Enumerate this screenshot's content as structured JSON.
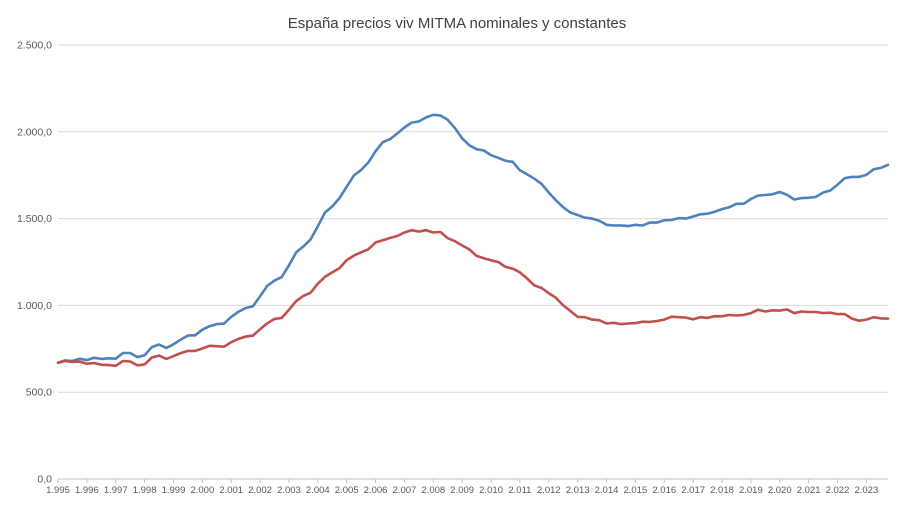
{
  "chart_data": {
    "type": "line",
    "title": "España precios viv MITMA nominales y constantes",
    "xlabel": "",
    "ylabel": "",
    "ylim": [
      0,
      2500
    ],
    "yticks": [
      "0,0",
      "500,0",
      "1.000,0",
      "1.500,0",
      "2.000,0",
      "2.500,0"
    ],
    "ytick_values": [
      0,
      500,
      1000,
      1500,
      2000,
      2500
    ],
    "xticks": [
      "1.995",
      "1.996",
      "1.997",
      "1.998",
      "1.999",
      "2.000",
      "2.001",
      "2.002",
      "2.003",
      "2.004",
      "2.005",
      "2.006",
      "2.007",
      "2.008",
      "2.009",
      "2.010",
      "2.011",
      "2.012",
      "2.013",
      "2.014",
      "2.015",
      "2.016",
      "2.017",
      "2.018",
      "2.019",
      "2.020",
      "2.021",
      "2.022",
      "2.023"
    ],
    "xlim": [
      1995,
      2023.75
    ],
    "grid": "horizontal",
    "legend": "none",
    "series": [
      {
        "color": "#4f81bd",
        "points": [
          [
            1995.0,
            670
          ],
          [
            1995.25,
            683
          ],
          [
            1995.5,
            680
          ],
          [
            1995.75,
            693
          ],
          [
            1996.0,
            685
          ],
          [
            1996.25,
            698
          ],
          [
            1996.5,
            692
          ],
          [
            1996.75,
            695
          ],
          [
            1997.0,
            693
          ],
          [
            1997.25,
            726
          ],
          [
            1997.5,
            726
          ],
          [
            1997.75,
            702
          ],
          [
            1998.0,
            713
          ],
          [
            1998.25,
            760
          ],
          [
            1998.5,
            775
          ],
          [
            1998.75,
            755
          ],
          [
            1999.0,
            776
          ],
          [
            1999.25,
            803
          ],
          [
            1999.5,
            826
          ],
          [
            1999.75,
            828
          ],
          [
            2000.0,
            860
          ],
          [
            2000.25,
            880
          ],
          [
            2000.5,
            892
          ],
          [
            2000.75,
            895
          ],
          [
            2001.0,
            934
          ],
          [
            2001.25,
            963
          ],
          [
            2001.5,
            985
          ],
          [
            2001.75,
            995
          ],
          [
            2002.0,
            1053
          ],
          [
            2002.25,
            1113
          ],
          [
            2002.5,
            1143
          ],
          [
            2002.75,
            1163
          ],
          [
            2003.0,
            1231
          ],
          [
            2003.25,
            1306
          ],
          [
            2003.5,
            1340
          ],
          [
            2003.75,
            1380
          ],
          [
            2004.0,
            1455
          ],
          [
            2004.25,
            1535
          ],
          [
            2004.5,
            1570
          ],
          [
            2004.75,
            1618
          ],
          [
            2005.0,
            1684
          ],
          [
            2005.25,
            1748
          ],
          [
            2005.5,
            1780
          ],
          [
            2005.75,
            1823
          ],
          [
            2006.0,
            1888
          ],
          [
            2006.25,
            1940
          ],
          [
            2006.5,
            1958
          ],
          [
            2006.75,
            1990
          ],
          [
            2007.0,
            2025
          ],
          [
            2007.25,
            2053
          ],
          [
            2007.5,
            2060
          ],
          [
            2007.75,
            2083
          ],
          [
            2008.0,
            2098
          ],
          [
            2008.25,
            2094
          ],
          [
            2008.5,
            2069
          ],
          [
            2008.75,
            2021
          ],
          [
            2009.0,
            1962
          ],
          [
            2009.25,
            1922
          ],
          [
            2009.5,
            1900
          ],
          [
            2009.75,
            1892
          ],
          [
            2010.0,
            1865
          ],
          [
            2010.25,
            1850
          ],
          [
            2010.5,
            1833
          ],
          [
            2010.75,
            1827
          ],
          [
            2011.0,
            1778
          ],
          [
            2011.25,
            1755
          ],
          [
            2011.5,
            1730
          ],
          [
            2011.75,
            1700
          ],
          [
            2012.0,
            1650
          ],
          [
            2012.25,
            1605
          ],
          [
            2012.5,
            1565
          ],
          [
            2012.75,
            1535
          ],
          [
            2013.0,
            1521
          ],
          [
            2013.25,
            1505
          ],
          [
            2013.5,
            1500
          ],
          [
            2013.75,
            1488
          ],
          [
            2014.0,
            1464
          ],
          [
            2014.25,
            1460
          ],
          [
            2014.5,
            1461
          ],
          [
            2014.75,
            1457
          ],
          [
            2015.0,
            1464
          ],
          [
            2015.25,
            1460
          ],
          [
            2015.5,
            1477
          ],
          [
            2015.75,
            1477
          ],
          [
            2016.0,
            1490
          ],
          [
            2016.25,
            1492
          ],
          [
            2016.5,
            1503
          ],
          [
            2016.75,
            1500
          ],
          [
            2017.0,
            1512
          ],
          [
            2017.25,
            1525
          ],
          [
            2017.5,
            1528
          ],
          [
            2017.75,
            1540
          ],
          [
            2018.0,
            1555
          ],
          [
            2018.25,
            1565
          ],
          [
            2018.5,
            1585
          ],
          [
            2018.75,
            1585
          ],
          [
            2019.0,
            1613
          ],
          [
            2019.25,
            1633
          ],
          [
            2019.5,
            1636
          ],
          [
            2019.75,
            1640
          ],
          [
            2020.0,
            1653
          ],
          [
            2020.25,
            1637
          ],
          [
            2020.5,
            1610
          ],
          [
            2020.75,
            1618
          ],
          [
            2021.0,
            1620
          ],
          [
            2021.25,
            1625
          ],
          [
            2021.5,
            1650
          ],
          [
            2021.75,
            1662
          ],
          [
            2022.0,
            1695
          ],
          [
            2022.25,
            1733
          ],
          [
            2022.5,
            1740
          ],
          [
            2022.75,
            1740
          ],
          [
            2023.0,
            1752
          ],
          [
            2023.25,
            1784
          ],
          [
            2023.5,
            1792
          ],
          [
            2023.75,
            1810
          ]
        ]
      },
      {
        "color": "#c0504d",
        "points": [
          [
            1995.0,
            670
          ],
          [
            1995.25,
            680
          ],
          [
            1995.5,
            674
          ],
          [
            1995.75,
            676
          ],
          [
            1996.0,
            664
          ],
          [
            1996.25,
            668
          ],
          [
            1996.5,
            658
          ],
          [
            1996.75,
            656
          ],
          [
            1997.0,
            652
          ],
          [
            1997.25,
            680
          ],
          [
            1997.5,
            677
          ],
          [
            1997.75,
            655
          ],
          [
            1998.0,
            660
          ],
          [
            1998.25,
            700
          ],
          [
            1998.5,
            711
          ],
          [
            1998.75,
            692
          ],
          [
            1999.0,
            708
          ],
          [
            1999.25,
            725
          ],
          [
            1999.5,
            738
          ],
          [
            1999.75,
            738
          ],
          [
            2000.0,
            752
          ],
          [
            2000.25,
            767
          ],
          [
            2000.5,
            765
          ],
          [
            2000.75,
            762
          ],
          [
            2001.0,
            788
          ],
          [
            2001.25,
            807
          ],
          [
            2001.5,
            820
          ],
          [
            2001.75,
            826
          ],
          [
            2002.0,
            863
          ],
          [
            2002.25,
            897
          ],
          [
            2002.5,
            922
          ],
          [
            2002.75,
            928
          ],
          [
            2003.0,
            975
          ],
          [
            2003.25,
            1025
          ],
          [
            2003.5,
            1055
          ],
          [
            2003.75,
            1073
          ],
          [
            2004.0,
            1125
          ],
          [
            2004.25,
            1165
          ],
          [
            2004.5,
            1190
          ],
          [
            2004.75,
            1215
          ],
          [
            2005.0,
            1261
          ],
          [
            2005.25,
            1287
          ],
          [
            2005.5,
            1306
          ],
          [
            2005.75,
            1323
          ],
          [
            2006.0,
            1363
          ],
          [
            2006.25,
            1375
          ],
          [
            2006.5,
            1388
          ],
          [
            2006.75,
            1400
          ],
          [
            2007.0,
            1420
          ],
          [
            2007.25,
            1433
          ],
          [
            2007.5,
            1425
          ],
          [
            2007.75,
            1433
          ],
          [
            2008.0,
            1420
          ],
          [
            2008.25,
            1423
          ],
          [
            2008.5,
            1387
          ],
          [
            2008.75,
            1370
          ],
          [
            2009.0,
            1345
          ],
          [
            2009.25,
            1322
          ],
          [
            2009.5,
            1285
          ],
          [
            2009.75,
            1272
          ],
          [
            2010.0,
            1260
          ],
          [
            2010.25,
            1250
          ],
          [
            2010.5,
            1222
          ],
          [
            2010.75,
            1212
          ],
          [
            2011.0,
            1190
          ],
          [
            2011.25,
            1155
          ],
          [
            2011.5,
            1115
          ],
          [
            2011.75,
            1100
          ],
          [
            2012.0,
            1070
          ],
          [
            2012.25,
            1043
          ],
          [
            2012.5,
            1000
          ],
          [
            2012.75,
            968
          ],
          [
            2013.0,
            934
          ],
          [
            2013.25,
            932
          ],
          [
            2013.5,
            918
          ],
          [
            2013.75,
            915
          ],
          [
            2014.0,
            896
          ],
          [
            2014.25,
            900
          ],
          [
            2014.5,
            892
          ],
          [
            2014.75,
            896
          ],
          [
            2015.0,
            898
          ],
          [
            2015.25,
            906
          ],
          [
            2015.5,
            905
          ],
          [
            2015.75,
            910
          ],
          [
            2016.0,
            918
          ],
          [
            2016.25,
            935
          ],
          [
            2016.5,
            932
          ],
          [
            2016.75,
            930
          ],
          [
            2017.0,
            920
          ],
          [
            2017.25,
            932
          ],
          [
            2017.5,
            928
          ],
          [
            2017.75,
            938
          ],
          [
            2018.0,
            937
          ],
          [
            2018.25,
            945
          ],
          [
            2018.5,
            942
          ],
          [
            2018.75,
            945
          ],
          [
            2019.0,
            955
          ],
          [
            2019.25,
            975
          ],
          [
            2019.5,
            965
          ],
          [
            2019.75,
            972
          ],
          [
            2020.0,
            970
          ],
          [
            2020.25,
            977
          ],
          [
            2020.5,
            955
          ],
          [
            2020.75,
            965
          ],
          [
            2021.0,
            962
          ],
          [
            2021.25,
            962
          ],
          [
            2021.5,
            956
          ],
          [
            2021.75,
            958
          ],
          [
            2022.0,
            950
          ],
          [
            2022.25,
            950
          ],
          [
            2022.5,
            924
          ],
          [
            2022.75,
            912
          ],
          [
            2023.0,
            918
          ],
          [
            2023.25,
            932
          ],
          [
            2023.5,
            925
          ],
          [
            2023.75,
            924
          ]
        ]
      }
    ]
  }
}
